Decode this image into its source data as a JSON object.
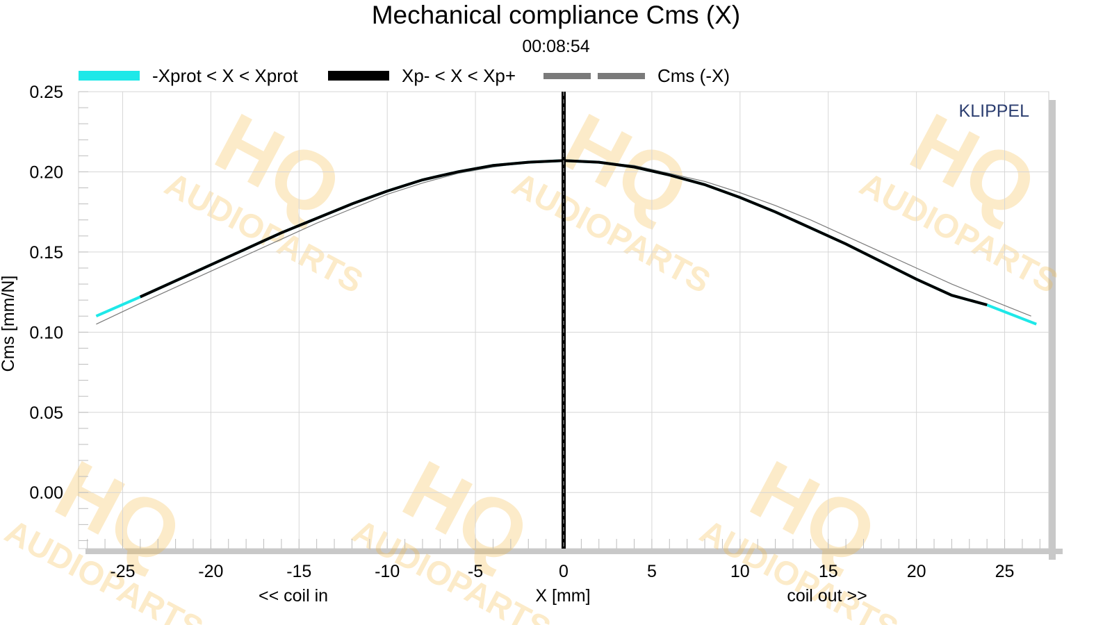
{
  "chart_data": {
    "type": "line",
    "title": "Mechanical compliance Cms (X)",
    "subtitle": "00:08:54",
    "xlabel": "X [mm]",
    "ylabel": "Cms [mm/N]",
    "x_annotation_left": "<< coil in",
    "x_annotation_right": "coil out >>",
    "brand": "KLIPPEL",
    "watermark_main": "HQ",
    "watermark_sub": "AUDIOPARTS",
    "xlim": [
      -27.5,
      27.5
    ],
    "ylim": [
      -0.035,
      0.25
    ],
    "xticks": [
      -25,
      -20,
      -15,
      -10,
      -5,
      0,
      5,
      10,
      15,
      20,
      25
    ],
    "xtick_labels": [
      "-25",
      "-20",
      "-15",
      "-10",
      "-5",
      "0",
      "5",
      "10",
      "15",
      "20",
      "25"
    ],
    "yticks": [
      0.0,
      0.05,
      0.1,
      0.15,
      0.2,
      0.25
    ],
    "ytick_labels": [
      "0.00",
      "0.05",
      "0.10",
      "0.15",
      "0.20",
      "0.25"
    ],
    "grid": true,
    "vertical_marker_x": 0,
    "series": [
      {
        "name": "-Xprot < X < Xprot",
        "color": "#1ee8e8",
        "x": [
          -26.5,
          -24,
          -22,
          -20,
          -18,
          -16,
          -14,
          -12,
          -10,
          -8,
          -6,
          -4,
          -2,
          0,
          2,
          4,
          6,
          8,
          10,
          12,
          14,
          16,
          18,
          20,
          22,
          24,
          26.8
        ],
        "y": [
          0.11,
          0.122,
          0.132,
          0.142,
          0.152,
          0.162,
          0.171,
          0.18,
          0.188,
          0.195,
          0.2,
          0.204,
          0.206,
          0.207,
          0.206,
          0.203,
          0.198,
          0.192,
          0.184,
          0.175,
          0.165,
          0.155,
          0.144,
          0.133,
          0.123,
          0.117,
          0.105
        ]
      },
      {
        "name": "Xp- < X < Xp+",
        "color": "#000000",
        "x": [
          -24,
          -22,
          -20,
          -18,
          -16,
          -14,
          -12,
          -10,
          -8,
          -6,
          -4,
          -2,
          0,
          2,
          4,
          6,
          8,
          10,
          12,
          14,
          16,
          18,
          20,
          22,
          24
        ],
        "y": [
          0.122,
          0.132,
          0.142,
          0.152,
          0.162,
          0.171,
          0.18,
          0.188,
          0.195,
          0.2,
          0.204,
          0.206,
          0.207,
          0.206,
          0.203,
          0.198,
          0.192,
          0.184,
          0.175,
          0.165,
          0.155,
          0.144,
          0.133,
          0.123,
          0.117
        ]
      },
      {
        "name": "Cms (-X)",
        "color": "#7a7a7a",
        "x": [
          -26.5,
          -24,
          -22,
          -20,
          -18,
          -16,
          -14,
          -12,
          -10,
          -8,
          -6,
          -4,
          -2,
          0,
          2,
          4,
          6,
          8,
          10,
          12,
          14,
          16,
          18,
          20,
          22,
          24,
          26.5
        ],
        "y": [
          0.105,
          0.118,
          0.128,
          0.138,
          0.148,
          0.158,
          0.168,
          0.177,
          0.186,
          0.193,
          0.199,
          0.203,
          0.206,
          0.207,
          0.206,
          0.204,
          0.199,
          0.194,
          0.187,
          0.179,
          0.17,
          0.16,
          0.15,
          0.14,
          0.13,
          0.121,
          0.11
        ]
      }
    ]
  }
}
